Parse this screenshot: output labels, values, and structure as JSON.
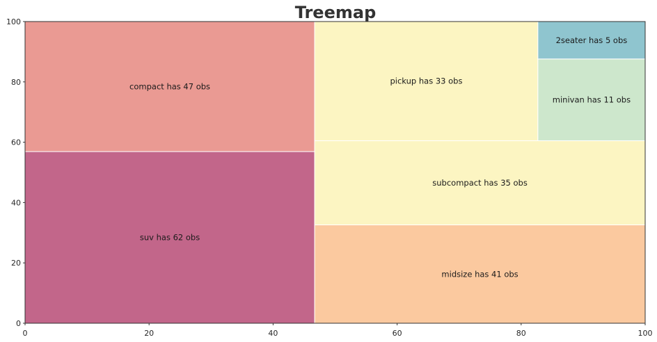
{
  "chart_data": {
    "type": "treemap",
    "title": "Treemap",
    "xlim": [
      0,
      100
    ],
    "ylim": [
      0,
      100
    ],
    "xticks": [
      "0",
      "20",
      "40",
      "60",
      "80",
      "100"
    ],
    "yticks": [
      "0",
      "20",
      "40",
      "60",
      "80",
      "100"
    ],
    "grid": false,
    "cells": [
      {
        "category": "suv",
        "count": 62,
        "label": "suv has 62 obs",
        "x0": 0,
        "x1": 46.7,
        "y0": 0,
        "y1": 56.9,
        "color": "#c2668a"
      },
      {
        "category": "compact",
        "count": 47,
        "label": "compact has 47 obs",
        "x0": 0,
        "x1": 46.7,
        "y0": 56.9,
        "y1": 100,
        "color": "#ea9a93"
      },
      {
        "category": "midsize",
        "count": 41,
        "label": "midsize has 41 obs",
        "x0": 46.7,
        "x1": 100,
        "y0": 0,
        "y1": 32.6,
        "color": "#fbc99f"
      },
      {
        "category": "subcompact",
        "count": 35,
        "label": "subcompact has 35 obs",
        "x0": 46.7,
        "x1": 100,
        "y0": 32.6,
        "y1": 60.5,
        "color": "#fcf5c2"
      },
      {
        "category": "pickup",
        "count": 33,
        "label": "pickup has 33 obs",
        "x0": 46.7,
        "x1": 82.7,
        "y0": 60.5,
        "y1": 100,
        "color": "#fcf5c2"
      },
      {
        "category": "minivan",
        "count": 11,
        "label": "minivan has 11 obs",
        "x0": 82.7,
        "x1": 100,
        "y0": 60.5,
        "y1": 87.6,
        "color": "#cde7cc"
      },
      {
        "category": "2seater",
        "count": 5,
        "label": "2seater has 5 obs",
        "x0": 82.7,
        "x1": 100,
        "y0": 87.6,
        "y1": 100,
        "color": "#8fc5cf"
      }
    ]
  }
}
